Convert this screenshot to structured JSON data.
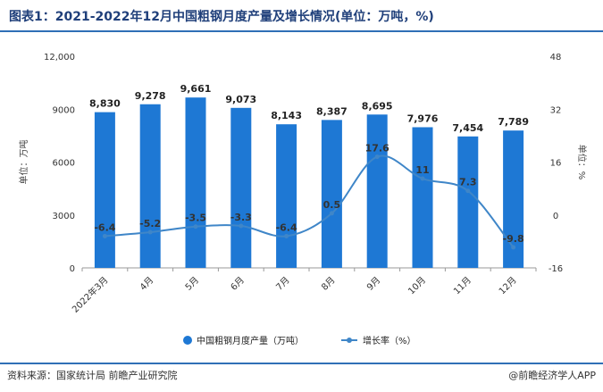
{
  "title": "图表1：2021-2022年12月中国粗钢月度产量及增长情况(单位：万吨，%)",
  "source": "资料来源：国家统计局 前瞻产业研究院",
  "brand": "@前瞻经济学人APP",
  "colors": {
    "bar": "#1e78d4",
    "line": "#3f86c8",
    "grid": "#d9d9d9"
  },
  "chart_data": {
    "type": "bar",
    "categories": [
      "2022年3月",
      "4月",
      "5月",
      "6月",
      "7月",
      "8月",
      "9月",
      "10月",
      "11月",
      "12月"
    ],
    "series": [
      {
        "name": "中国粗钢月度产量（万吨）",
        "type": "bar",
        "axis": "left",
        "values": [
          8830,
          9278,
          9661,
          9073,
          8143,
          8387,
          8695,
          7976,
          7454,
          7789
        ],
        "labels": [
          "8,830",
          "9,278",
          "9,661",
          "9,073",
          "8,143",
          "8,387",
          "8,695",
          "7,976",
          "7,454",
          "7,789"
        ]
      },
      {
        "name": "增长率（%）",
        "type": "line",
        "axis": "right",
        "values": [
          -6.4,
          -5.2,
          -3.5,
          -3.3,
          -6.4,
          0.5,
          17.6,
          11,
          7.3,
          -9.8
        ],
        "labels": [
          "-6.4",
          "-5.2",
          "-3.5",
          "-3.3",
          "-6.4",
          "0.5",
          "17.6",
          "11",
          "7.3",
          "-9.8"
        ]
      }
    ],
    "ylabel_left": "单位：万吨",
    "ylabel_right": "单位：%",
    "ylim_left": [
      0,
      12000
    ],
    "yticks_left": [
      "0",
      "3000",
      "6000",
      "9000",
      "12,000"
    ],
    "ylim_right": [
      -16,
      48
    ],
    "yticks_right": [
      "-16",
      "0",
      "16",
      "32",
      "48"
    ],
    "grid": false,
    "legend": "bottom"
  }
}
